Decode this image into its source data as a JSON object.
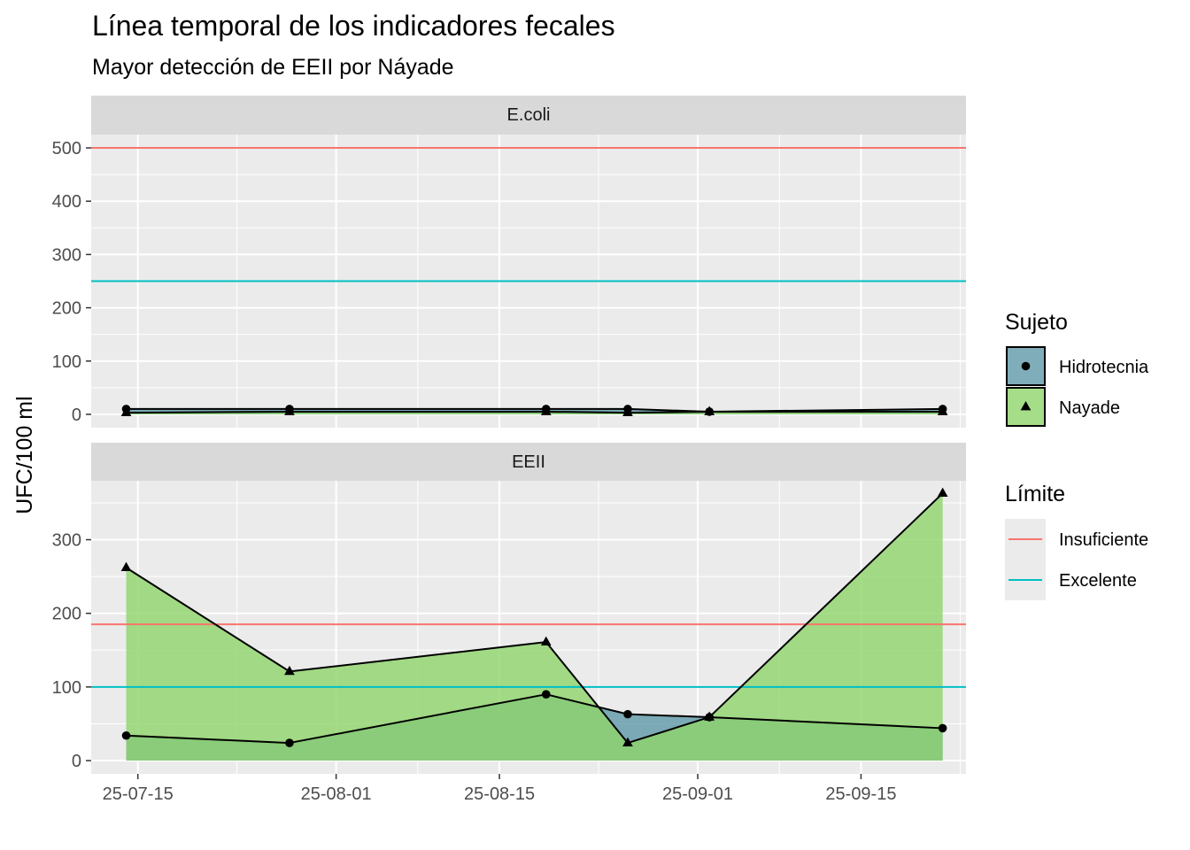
{
  "title": "Línea temporal de los indicadores fecales",
  "subtitle": "Mayor detección de EEII por Náyade",
  "chart_data": {
    "type": "area",
    "ylabel": "UFC/100 ml",
    "xlabel": "",
    "x_ticks": [
      "25-07-15",
      "25-08-01",
      "25-08-15",
      "25-09-01",
      "25-09-15"
    ],
    "dates": [
      "2025-07-14",
      "2025-07-28",
      "2025-08-19",
      "2025-08-26",
      "2025-09-02",
      "2025-09-22"
    ],
    "xlim": [
      "2025-07-11",
      "2025-09-24"
    ],
    "grid": true,
    "colors": {
      "Hidrotecnia": "#5f98a8",
      "Nayade": "#8fd46a",
      "Insuficiente": "#f8766d",
      "Excelente": "#00bfc4"
    },
    "panels": [
      {
        "name": "E.coli",
        "ylim": [
          -25,
          525
        ],
        "yticks": [
          0,
          100,
          200,
          300,
          400,
          500
        ],
        "series": [
          {
            "name": "Hidrotecnia",
            "values": [
              10,
              10,
              10,
              10,
              5,
              10
            ]
          },
          {
            "name": "Nayade",
            "values": [
              3,
              5,
              5,
              3,
              5,
              5
            ]
          }
        ],
        "limits": [
          {
            "name": "Insuficiente",
            "value": 500
          },
          {
            "name": "Excelente",
            "value": 250
          }
        ]
      },
      {
        "name": "EEII",
        "ylim": [
          -18,
          380
        ],
        "yticks": [
          0,
          100,
          200,
          300
        ],
        "series": [
          {
            "name": "Hidrotecnia",
            "values": [
              34,
              24,
              90,
              63,
              59,
              44
            ]
          },
          {
            "name": "Nayade",
            "values": [
              262,
              121,
              161,
              24,
              59,
              363
            ]
          }
        ],
        "limits": [
          {
            "name": "Insuficiente",
            "value": 185
          },
          {
            "name": "Excelente",
            "value": 100
          }
        ]
      }
    ]
  },
  "legend": {
    "sujeto_title": "Sujeto",
    "sujeto_items": [
      "Hidrotecnia",
      "Nayade"
    ],
    "limite_title": "Límite",
    "limite_items": [
      "Insuficiente",
      "Excelente"
    ]
  }
}
